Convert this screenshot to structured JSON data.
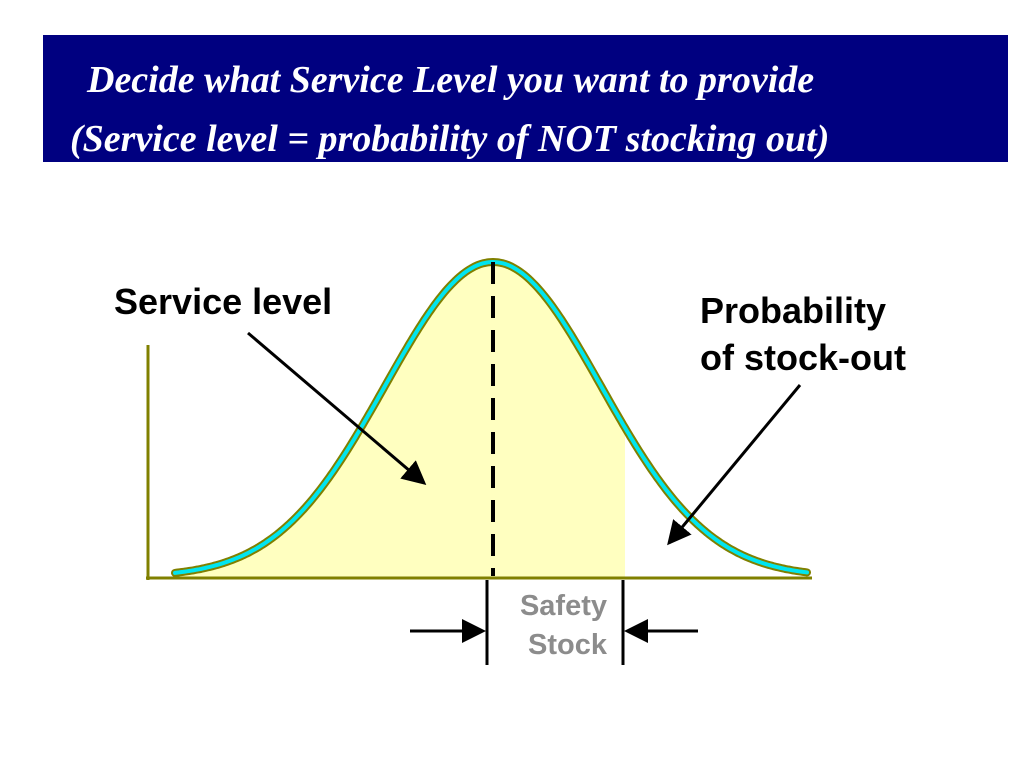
{
  "title": {
    "line1": "Decide what Service Level you want to provide",
    "line2": "(Service level = probability of NOT stocking out)"
  },
  "diagram": {
    "service_level_label": "Service level",
    "stockout_label_line1": "Probability",
    "stockout_label_line2": "of stock-out",
    "safety_stock_line1": "Safety",
    "safety_stock_line2": "Stock"
  },
  "colors": {
    "banner": "#000080",
    "service_area_fill": "#ffffc0",
    "curve_outline": "#808000",
    "curve_highlight": "#00e5f0",
    "axis": "#808000",
    "safety_stock_text": "#8c8c8c"
  }
}
